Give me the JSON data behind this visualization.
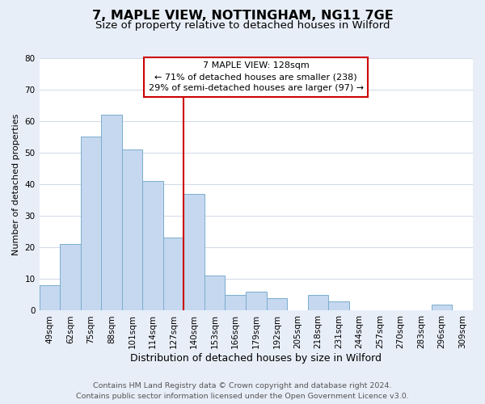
{
  "title": "7, MAPLE VIEW, NOTTINGHAM, NG11 7GE",
  "subtitle": "Size of property relative to detached houses in Wilford",
  "xlabel": "Distribution of detached houses by size in Wilford",
  "ylabel": "Number of detached properties",
  "bar_labels": [
    "49sqm",
    "62sqm",
    "75sqm",
    "88sqm",
    "101sqm",
    "114sqm",
    "127sqm",
    "140sqm",
    "153sqm",
    "166sqm",
    "179sqm",
    "192sqm",
    "205sqm",
    "218sqm",
    "231sqm",
    "244sqm",
    "257sqm",
    "270sqm",
    "283sqm",
    "296sqm",
    "309sqm"
  ],
  "bar_values": [
    8,
    21,
    55,
    62,
    51,
    41,
    23,
    37,
    11,
    5,
    6,
    4,
    0,
    5,
    3,
    0,
    0,
    0,
    0,
    2,
    0
  ],
  "bar_color": "#c5d8ef",
  "bar_edge_color": "#7aadce",
  "vline_x_idx": 6,
  "vline_color": "#cc0000",
  "annotation_line1": "7 MAPLE VIEW: 128sqm",
  "annotation_line2": "← 71% of detached houses are smaller (238)",
  "annotation_line3": "29% of semi-detached houses are larger (97) →",
  "annotation_box_facecolor": "#ffffff",
  "annotation_box_edgecolor": "#cc0000",
  "ylim": [
    0,
    80
  ],
  "yticks": [
    0,
    10,
    20,
    30,
    40,
    50,
    60,
    70,
    80
  ],
  "footer_line1": "Contains HM Land Registry data © Crown copyright and database right 2024.",
  "footer_line2": "Contains public sector information licensed under the Open Government Licence v3.0.",
  "bg_color": "#e8eef8",
  "plot_bg_color": "#ffffff",
  "grid_color": "#d0d8e8",
  "title_fontsize": 11.5,
  "subtitle_fontsize": 9.5,
  "xlabel_fontsize": 9,
  "ylabel_fontsize": 8,
  "tick_fontsize": 7.5,
  "annotation_fontsize": 8,
  "footer_fontsize": 6.8
}
